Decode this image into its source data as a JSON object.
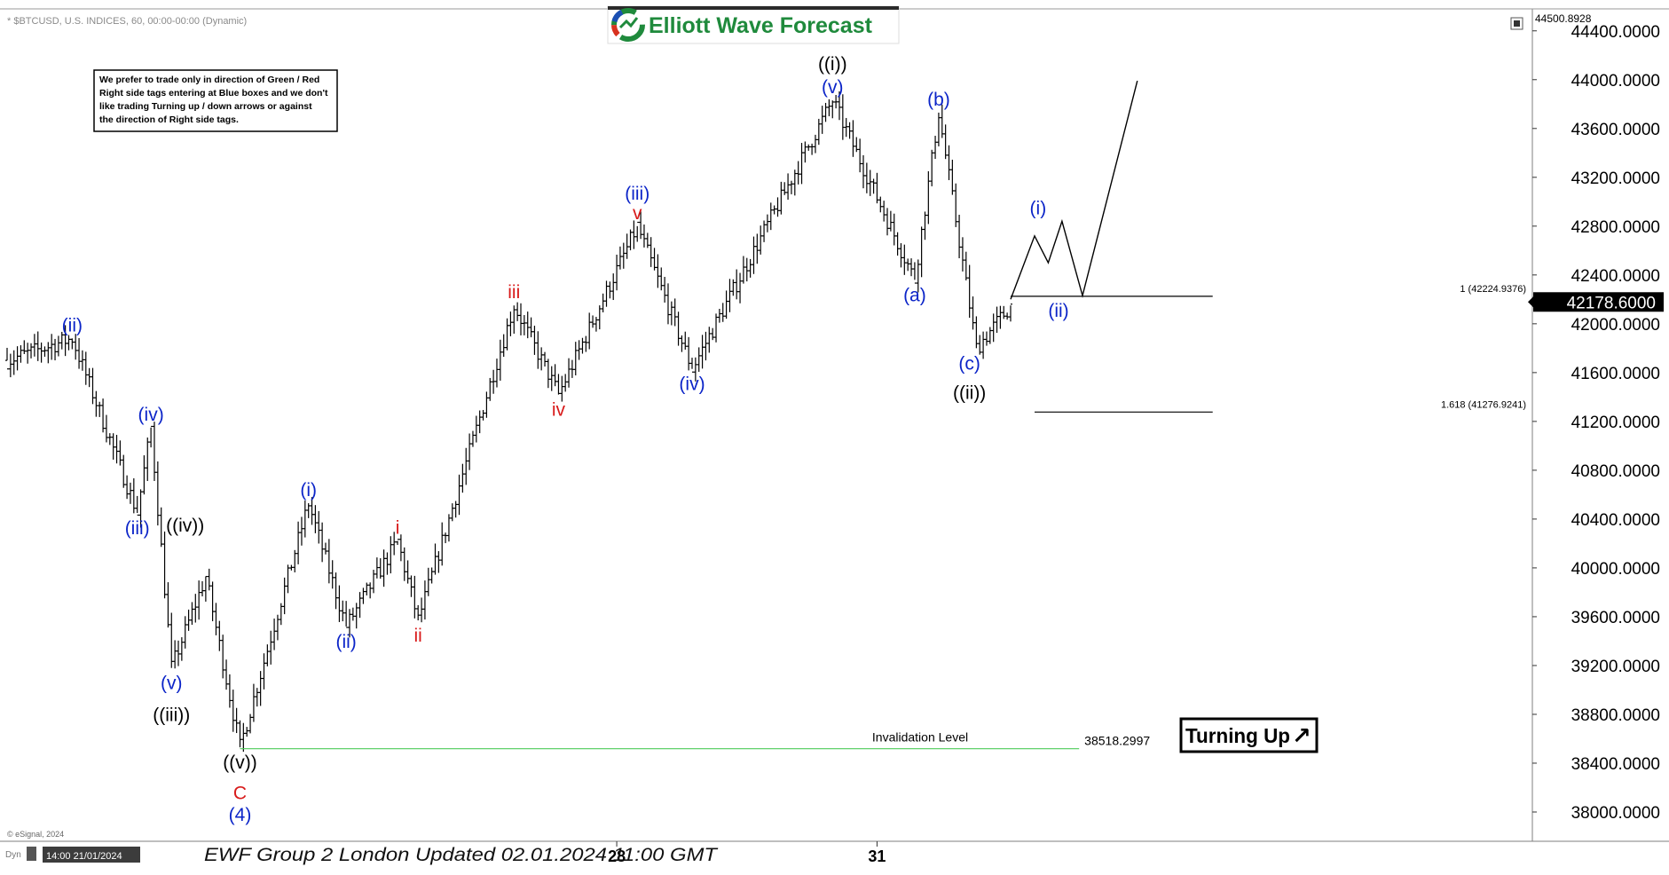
{
  "header": {
    "symbol_line": "* $BTCUSD, U.S. INDICES, 60, 00:00-00:00 (Dynamic)",
    "brand": "Elliott Wave Forecast",
    "note": [
      "We prefer to trade only in direction of Green / Red",
      "Right side tags entering at Blue boxes and we don't",
      "like trading Turning up / down arrows or against",
      "the direction of Right side tags."
    ]
  },
  "footer": {
    "copyright": "© eSignal, 2024",
    "left_tag": "Dyn",
    "cursor_date": "14:00 21/01/2024",
    "caption": "EWF Group 2 London Updated 02.01.2024 11:00 GMT"
  },
  "badge": {
    "text": "Turning Up",
    "arrow": "↗"
  },
  "colors": {
    "blue": "#0b24c8",
    "red": "#d81a1a",
    "black": "#000000",
    "green": "#4ecb5a",
    "brand_green": "#1f8a3c",
    "price_tag_bg": "#000000"
  },
  "chart_data": {
    "type": "ohlc",
    "instrument": "$BTCUSD",
    "interval": "60",
    "ylim": [
      37760,
      44580
    ],
    "y_ticks": [
      38000,
      38400,
      38800,
      39200,
      39600,
      40000,
      40400,
      40800,
      41200,
      41600,
      42000,
      42400,
      42800,
      43200,
      43600,
      44000,
      44400
    ],
    "y_tick_labels": [
      "38000.0000",
      "38400.0000",
      "38800.0000",
      "39200.0000",
      "39600.0000",
      "40000.0000",
      "40400.0000",
      "40800.0000",
      "41200.0000",
      "41600.0000",
      "42000.0000",
      "42400.0000",
      "42800.0000",
      "43200.0000",
      "43600.0000",
      "44000.0000",
      "44400.0000"
    ],
    "x_ticks": [
      {
        "label": "28",
        "bar": 178
      },
      {
        "label": "31",
        "bar": 254
      }
    ],
    "top_price_label": "44500.8928",
    "last_price": 42178.6,
    "last_price_label": "42178.6000",
    "pivots": [
      {
        "bar": 0,
        "price": 41700
      },
      {
        "bar": 19,
        "price": 41880
      },
      {
        "bar": 38,
        "price": 40450
      },
      {
        "bar": 42,
        "price": 41150
      },
      {
        "bar": 48,
        "price": 39180
      },
      {
        "bar": 58,
        "price": 39930
      },
      {
        "bar": 68,
        "price": 38530
      },
      {
        "bar": 88,
        "price": 40530
      },
      {
        "bar": 99,
        "price": 39520
      },
      {
        "bar": 114,
        "price": 40220
      },
      {
        "bar": 120,
        "price": 39570
      },
      {
        "bar": 148,
        "price": 42150
      },
      {
        "bar": 161,
        "price": 41420
      },
      {
        "bar": 184,
        "price": 42800
      },
      {
        "bar": 200,
        "price": 41630
      },
      {
        "bar": 241,
        "price": 43830
      },
      {
        "bar": 265,
        "price": 42360
      },
      {
        "bar": 272,
        "price": 43730
      },
      {
        "bar": 283,
        "price": 41800
      },
      {
        "bar": 293,
        "price": 42150
      }
    ],
    "projection": [
      {
        "bar": 293,
        "price": 42200
      },
      {
        "bar": 300,
        "price": 42720
      },
      {
        "bar": 304,
        "price": 42500
      },
      {
        "bar": 308,
        "price": 42840
      },
      {
        "bar": 314,
        "price": 42230
      },
      {
        "bar": 330,
        "price": 43990
      }
    ],
    "levels": [
      {
        "price": 42224.9376,
        "label": "1 (42224.9376)",
        "bar_from": 293,
        "bar_to": 352,
        "color": "#000000"
      },
      {
        "price": 41276.9241,
        "label": "1.618 (41276.9241)",
        "bar_from": 300,
        "bar_to": 352,
        "color": "#000000"
      },
      {
        "price": 38518.2997,
        "label": "38518.2997",
        "caption": "Invalidation Level",
        "bar_from": 68,
        "bar_to": 313,
        "color": "#4ecb5a"
      }
    ],
    "wave_labels": [
      {
        "text": "(ii)",
        "bar": 19,
        "price": 41880,
        "pos": "above",
        "color": "blue"
      },
      {
        "text": "(iii)",
        "bar": 38,
        "price": 40450,
        "pos": "below",
        "color": "blue"
      },
      {
        "text": "(iv)",
        "bar": 42,
        "price": 41150,
        "pos": "above",
        "color": "blue"
      },
      {
        "text": "((iv))",
        "bar": 52,
        "price": 40240,
        "pos": "above",
        "color": "black"
      },
      {
        "text": "(v)",
        "bar": 48,
        "price": 39180,
        "pos": "below",
        "color": "blue"
      },
      {
        "text": "((iii))",
        "bar": 48,
        "price": 38920,
        "pos": "below",
        "color": "black"
      },
      {
        "text": "((v))",
        "bar": 68,
        "price": 38530,
        "pos": "below",
        "color": "black"
      },
      {
        "text": "C",
        "bar": 68,
        "price": 38280,
        "pos": "below",
        "color": "red"
      },
      {
        "text": "(4)",
        "bar": 68,
        "price": 38100,
        "pos": "below",
        "color": "blue"
      },
      {
        "text": "(i)",
        "bar": 88,
        "price": 40530,
        "pos": "above",
        "color": "blue"
      },
      {
        "text": "(ii)",
        "bar": 99,
        "price": 39520,
        "pos": "below",
        "color": "blue"
      },
      {
        "text": "i",
        "bar": 114,
        "price": 40220,
        "pos": "above",
        "color": "red"
      },
      {
        "text": "ii",
        "bar": 120,
        "price": 39570,
        "pos": "below",
        "color": "red"
      },
      {
        "text": "iii",
        "bar": 148,
        "price": 42150,
        "pos": "above",
        "color": "red"
      },
      {
        "text": "iv",
        "bar": 161,
        "price": 41420,
        "pos": "below",
        "color": "red"
      },
      {
        "text": "v",
        "bar": 184,
        "price": 42800,
        "pos": "above",
        "color": "red"
      },
      {
        "text": "(iii)",
        "bar": 184,
        "price": 42960,
        "pos": "above",
        "color": "blue"
      },
      {
        "text": "(iv)",
        "bar": 200,
        "price": 41630,
        "pos": "below",
        "color": "blue"
      },
      {
        "text": "(v)",
        "bar": 241,
        "price": 43830,
        "pos": "above",
        "color": "blue"
      },
      {
        "text": "((i))",
        "bar": 241,
        "price": 44020,
        "pos": "above",
        "color": "black"
      },
      {
        "text": "(a)",
        "bar": 265,
        "price": 42360,
        "pos": "below",
        "color": "blue"
      },
      {
        "text": "(b)",
        "bar": 272,
        "price": 43730,
        "pos": "above",
        "color": "blue"
      },
      {
        "text": "(c)",
        "bar": 281,
        "price": 41800,
        "pos": "below",
        "color": "blue"
      },
      {
        "text": "((ii))",
        "bar": 281,
        "price": 41560,
        "pos": "below",
        "color": "black"
      },
      {
        "text": "(i)",
        "bar": 301,
        "price": 42840,
        "pos": "above",
        "color": "blue"
      },
      {
        "text": "(ii)",
        "bar": 307,
        "price": 42230,
        "pos": "below",
        "color": "blue"
      }
    ]
  }
}
